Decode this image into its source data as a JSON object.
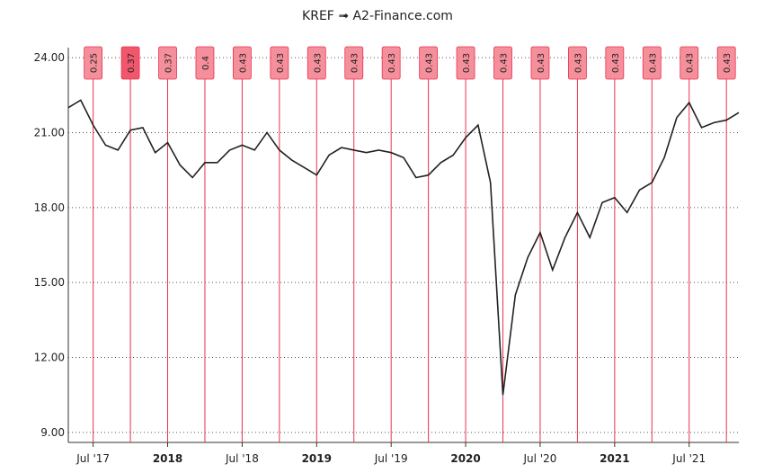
{
  "chart_data": {
    "type": "line",
    "title": "KREF ➟ A2-Finance.com",
    "x": [
      "2017-05",
      "2017-06",
      "2017-07",
      "2017-08",
      "2017-09",
      "2017-10",
      "2017-11",
      "2017-12",
      "2018-01",
      "2018-02",
      "2018-03",
      "2018-04",
      "2018-05",
      "2018-06",
      "2018-07",
      "2018-08",
      "2018-09",
      "2018-10",
      "2018-11",
      "2018-12",
      "2019-01",
      "2019-02",
      "2019-03",
      "2019-04",
      "2019-05",
      "2019-06",
      "2019-07",
      "2019-08",
      "2019-09",
      "2019-10",
      "2019-11",
      "2019-12",
      "2020-01",
      "2020-02",
      "2020-03",
      "2020-04",
      "2020-05",
      "2020-06",
      "2020-07",
      "2020-08",
      "2020-09",
      "2020-10",
      "2020-11",
      "2020-12",
      "2021-01",
      "2021-02",
      "2021-03",
      "2021-04",
      "2021-05",
      "2021-06",
      "2021-07",
      "2021-08",
      "2021-09",
      "2021-10",
      "2021-11"
    ],
    "series": [
      {
        "name": "KREF",
        "color": "#222222",
        "values": [
          22.0,
          22.3,
          21.3,
          20.5,
          20.3,
          21.1,
          21.2,
          20.2,
          20.6,
          19.7,
          19.2,
          19.8,
          19.8,
          20.3,
          20.5,
          20.3,
          21.0,
          20.3,
          19.9,
          19.6,
          19.3,
          20.1,
          20.4,
          20.3,
          20.2,
          20.3,
          20.2,
          20.0,
          19.2,
          19.3,
          19.8,
          20.1,
          20.8,
          21.3,
          19.0,
          10.5,
          14.5,
          16.0,
          17.0,
          15.5,
          16.8,
          17.8,
          16.8,
          18.2,
          18.4,
          17.8,
          18.7,
          19.0,
          20.0,
          21.6,
          22.2,
          21.2,
          21.4,
          21.5,
          21.8
        ]
      }
    ],
    "dividends": {
      "color": "#e8334f",
      "x": [
        "2017-07",
        "2017-10",
        "2018-01",
        "2018-04",
        "2018-07",
        "2018-10",
        "2019-01",
        "2019-04",
        "2019-07",
        "2019-10",
        "2020-01",
        "2020-04",
        "2020-07",
        "2020-10",
        "2021-01",
        "2021-04",
        "2021-07",
        "2021-10"
      ],
      "values": [
        0.25,
        0.37,
        0.37,
        0.4,
        0.43,
        0.43,
        0.43,
        0.43,
        0.43,
        0.43,
        0.43,
        0.43,
        0.43,
        0.43,
        0.43,
        0.43,
        0.43,
        0.43
      ]
    },
    "xlim": [
      "2017-05",
      "2021-11"
    ],
    "xticks": [
      {
        "value": "2017-07",
        "label": "Jul '17"
      },
      {
        "value": "2018-01",
        "label": "2018"
      },
      {
        "value": "2018-07",
        "label": "Jul '18"
      },
      {
        "value": "2019-01",
        "label": "2019"
      },
      {
        "value": "2019-07",
        "label": "Jul '19"
      },
      {
        "value": "2020-01",
        "label": "2020"
      },
      {
        "value": "2020-07",
        "label": "Jul '20"
      },
      {
        "value": "2021-01",
        "label": "2021"
      },
      {
        "value": "2021-07",
        "label": "Jul '21"
      }
    ],
    "ylim": [
      8.6,
      24.4
    ],
    "yticks": [
      {
        "value": 9,
        "label": "9.00"
      },
      {
        "value": 12,
        "label": "12.00"
      },
      {
        "value": 15,
        "label": "15.00"
      },
      {
        "value": 18,
        "label": "18.00"
      },
      {
        "value": 21,
        "label": "21.00"
      },
      {
        "value": 24,
        "label": "24.00"
      }
    ],
    "grid": true
  }
}
